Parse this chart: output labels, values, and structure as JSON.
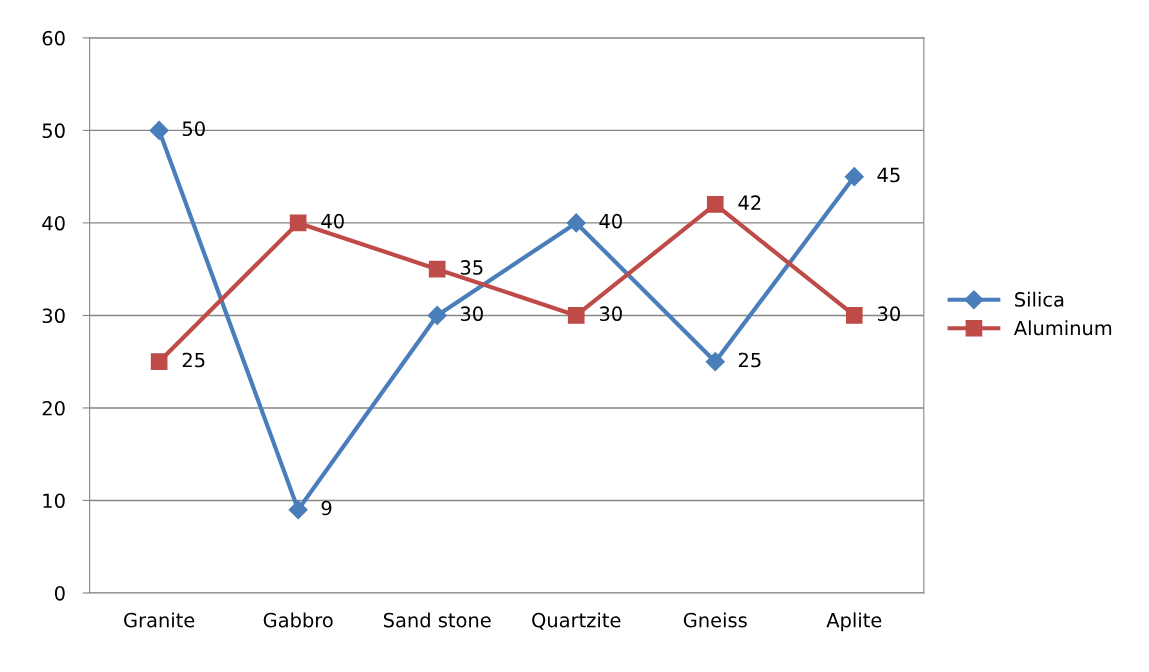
{
  "chart_data": {
    "type": "line",
    "categories": [
      "Granite",
      "Gabbro",
      "Sand stone",
      "Quartzite",
      "Gneiss",
      "Aplite"
    ],
    "series": [
      {
        "name": "Silica",
        "color": "#4a7ebb",
        "marker": "diamond",
        "values": [
          50,
          9,
          30,
          40,
          25,
          45
        ]
      },
      {
        "name": "Aluminum",
        "color": "#be4b48",
        "marker": "square",
        "values": [
          25,
          40,
          35,
          30,
          42,
          30
        ]
      }
    ],
    "ylim": [
      0,
      60
    ],
    "yticks": [
      0,
      10,
      20,
      30,
      40,
      50,
      60
    ],
    "grid": "y",
    "legend": "right",
    "data_labels": true,
    "line_style": "solid"
  }
}
